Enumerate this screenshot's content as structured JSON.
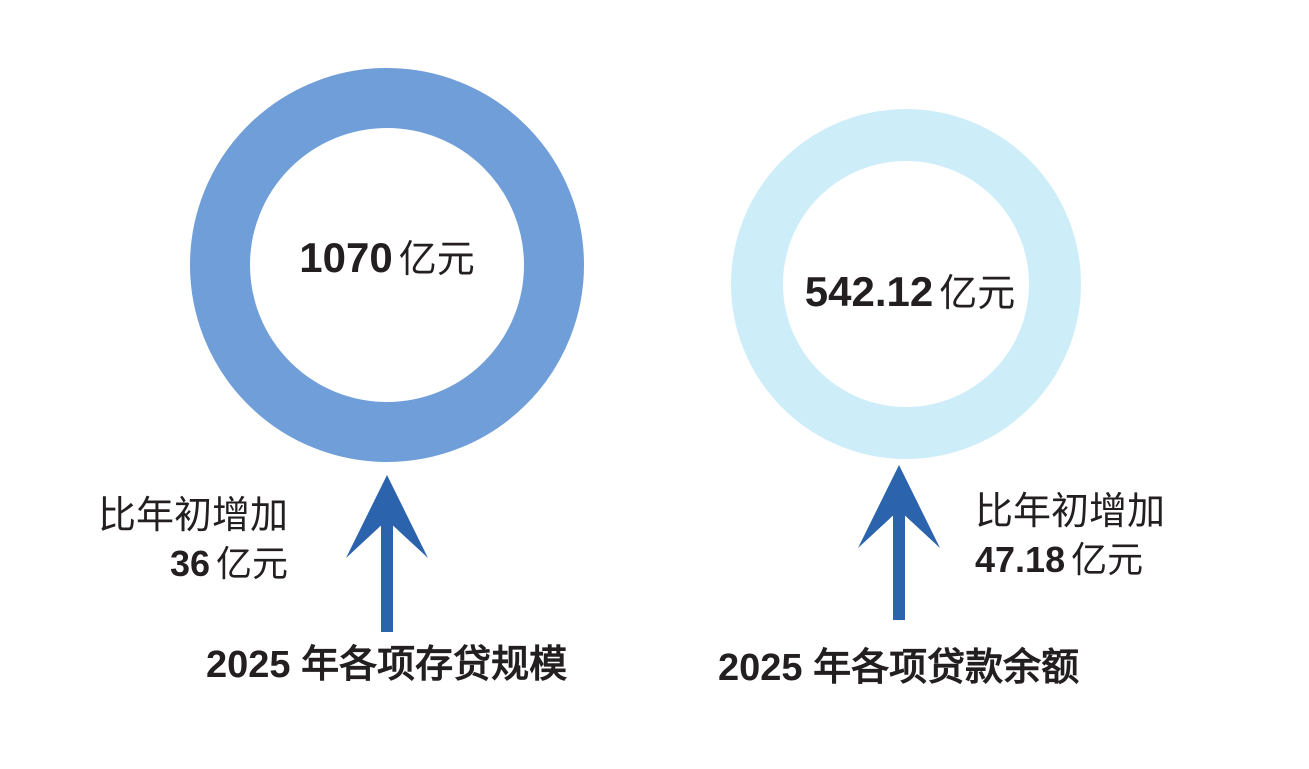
{
  "colors": {
    "ring_left": "#6f9ed8",
    "ring_right": "#cdeef9",
    "arrow": "#2b63ad",
    "text": "#231f20"
  },
  "left": {
    "value": "1070",
    "unit": "亿元",
    "note_prefix": "比年初增加",
    "note_value": "36",
    "note_unit": "亿元",
    "caption_year": "2025",
    "caption_text": "年各项存贷规模"
  },
  "right": {
    "value": "542.12",
    "unit": "亿元",
    "note_prefix": "比年初增加",
    "note_value": "47.18",
    "note_unit": "亿元",
    "caption_year": "2025",
    "caption_text": "年各项贷款余额"
  }
}
